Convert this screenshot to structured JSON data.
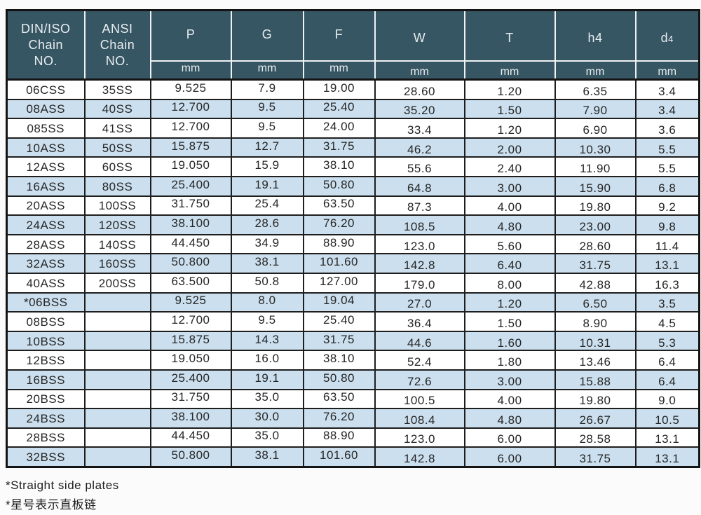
{
  "colors": {
    "header_bg": "#375663",
    "header_text": "#e9eef1",
    "row_alt_bg": "#cbdfee",
    "row_bg": "#ffffff",
    "grid_dark": "#1e1e1e",
    "grid_light": "#eef2f4"
  },
  "table": {
    "header": {
      "din_lines": [
        "DIN/ISO",
        "Chain",
        "NO."
      ],
      "ansi_lines": [
        "ANSI",
        "Chain",
        "NO."
      ],
      "unit": "mm",
      "cols": [
        {
          "label": "P"
        },
        {
          "label": "G"
        },
        {
          "label": "F"
        },
        {
          "label": "W"
        },
        {
          "label": "T"
        },
        {
          "label": "h4"
        },
        {
          "label_main": "d",
          "label_sub": "4"
        }
      ]
    },
    "rows": [
      {
        "din": "06CSS",
        "ansi": "35SS",
        "p": "9.525",
        "g": "7.9",
        "f": "19.00",
        "w": "28.60",
        "t": "1.20",
        "h4": "6.35",
        "d4": "3.4"
      },
      {
        "din": "08ASS",
        "ansi": "40SS",
        "p": "12.700",
        "g": "9.5",
        "f": "25.40",
        "w": "35.20",
        "t": "1.50",
        "h4": "7.90",
        "d4": "3.4"
      },
      {
        "din": "085SS",
        "ansi": "41SS",
        "p": "12.700",
        "g": "9.5",
        "f": "24.00",
        "w": "33.4",
        "t": "1.20",
        "h4": "6.90",
        "d4": "3.6"
      },
      {
        "din": "10ASS",
        "ansi": "50SS",
        "p": "15.875",
        "g": "12.7",
        "f": "31.75",
        "w": "46.2",
        "t": "2.00",
        "h4": "10.30",
        "d4": "5.5"
      },
      {
        "din": "12ASS",
        "ansi": "60SS",
        "p": "19.050",
        "g": "15.9",
        "f": "38.10",
        "w": "55.6",
        "t": "2.40",
        "h4": "11.90",
        "d4": "5.5"
      },
      {
        "din": "16ASS",
        "ansi": "80SS",
        "p": "25.400",
        "g": "19.1",
        "f": "50.80",
        "w": "64.8",
        "t": "3.00",
        "h4": "15.90",
        "d4": "6.8"
      },
      {
        "din": "20ASS",
        "ansi": "100SS",
        "p": "31.750",
        "g": "25.4",
        "f": "63.50",
        "w": "87.3",
        "t": "4.00",
        "h4": "19.80",
        "d4": "9.2"
      },
      {
        "din": "24ASS",
        "ansi": "120SS",
        "p": "38.100",
        "g": "28.6",
        "f": "76.20",
        "w": "108.5",
        "t": "4.80",
        "h4": "23.00",
        "d4": "9.8"
      },
      {
        "din": "28ASS",
        "ansi": "140SS",
        "p": "44.450",
        "g": "34.9",
        "f": "88.90",
        "w": "123.0",
        "t": "5.60",
        "h4": "28.60",
        "d4": "11.4"
      },
      {
        "din": "32ASS",
        "ansi": "160SS",
        "p": "50.800",
        "g": "38.1",
        "f": "101.60",
        "w": "142.8",
        "t": "6.40",
        "h4": "31.75",
        "d4": "13.1"
      },
      {
        "din": "40ASS",
        "ansi": "200SS",
        "p": "63.500",
        "g": "50.8",
        "f": "127.00",
        "w": "179.0",
        "t": "8.00",
        "h4": "42.88",
        "d4": "16.3"
      },
      {
        "din": "*06BSS",
        "ansi": "",
        "p": "9.525",
        "g": "8.0",
        "f": "19.04",
        "w": "27.0",
        "t": "1.20",
        "h4": "6.50",
        "d4": "3.5"
      },
      {
        "din": "08BSS",
        "ansi": "",
        "p": "12.700",
        "g": "9.5",
        "f": "25.40",
        "w": "36.4",
        "t": "1.50",
        "h4": "8.90",
        "d4": "4.5"
      },
      {
        "din": "10BSS",
        "ansi": "",
        "p": "15.875",
        "g": "14.3",
        "f": "31.75",
        "w": "44.6",
        "t": "1.60",
        "h4": "10.31",
        "d4": "5.3"
      },
      {
        "din": "12BSS",
        "ansi": "",
        "p": "19.050",
        "g": "16.0",
        "f": "38.10",
        "w": "52.4",
        "t": "1.80",
        "h4": "13.46",
        "d4": "6.4"
      },
      {
        "din": "16BSS",
        "ansi": "",
        "p": "25.400",
        "g": "19.1",
        "f": "50.80",
        "w": "72.6",
        "t": "3.00",
        "h4": "15.88",
        "d4": "6.4"
      },
      {
        "din": "20BSS",
        "ansi": "",
        "p": "31.750",
        "g": "35.0",
        "f": "63.50",
        "w": "100.5",
        "t": "4.00",
        "h4": "19.80",
        "d4": "9.0"
      },
      {
        "din": "24BSS",
        "ansi": "",
        "p": "38.100",
        "g": "30.0",
        "f": "76.20",
        "w": "108.4",
        "t": "4.80",
        "h4": "26.67",
        "d4": "10.5"
      },
      {
        "din": "28BSS",
        "ansi": "",
        "p": "44.450",
        "g": "35.0",
        "f": "88.90",
        "w": "123.0",
        "t": "6.00",
        "h4": "28.58",
        "d4": "13.1"
      },
      {
        "din": "32BSS",
        "ansi": "",
        "p": "50.800",
        "g": "38.1",
        "f": "101.60",
        "w": "142.8",
        "t": "6.00",
        "h4": "31.75",
        "d4": "13.1"
      }
    ]
  },
  "footnotes": {
    "en": "*Straight side plates",
    "zh": "*星号表示直板链"
  }
}
